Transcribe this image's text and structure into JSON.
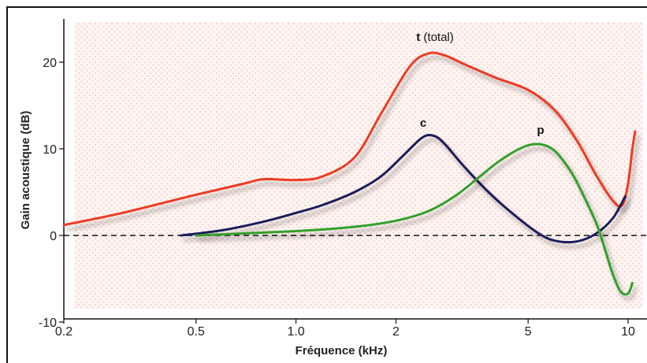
{
  "chart_data": {
    "type": "line",
    "xscale": "log",
    "xlim": [
      0.2,
      10.5
    ],
    "ylim": [
      -10,
      25
    ],
    "xticks": [
      {
        "value": 0.2,
        "label": "0.2"
      },
      {
        "value": 0.5,
        "label": "0.5"
      },
      {
        "value": 1.0,
        "label": "1.0"
      },
      {
        "value": 2,
        "label": "2"
      },
      {
        "value": 5,
        "label": "5"
      },
      {
        "value": 10,
        "label": "10"
      }
    ],
    "yticks": [
      {
        "value": -10,
        "label": "-10"
      },
      {
        "value": 0,
        "label": "0"
      },
      {
        "value": 10,
        "label": "10"
      },
      {
        "value": 20,
        "label": "20"
      }
    ],
    "xlabel": "Fréquence (kHz)",
    "ylabel": "Gain acoustique (dB)",
    "baseline": 0,
    "series": [
      {
        "name": "t (total)",
        "label_bold": "t",
        "label_rest": " (total)",
        "color": "#ee3a22",
        "x": [
          0.2,
          0.3,
          0.5,
          0.7,
          0.8,
          1.0,
          1.2,
          1.5,
          1.8,
          2.2,
          2.5,
          2.8,
          3.2,
          4.0,
          5.0,
          6.0,
          7.0,
          8.0,
          9.0,
          9.6,
          10.0,
          10.3,
          10.5
        ],
        "y": [
          1.2,
          2.6,
          4.7,
          6.0,
          6.5,
          6.4,
          6.8,
          9.0,
          14.0,
          19.5,
          21.0,
          20.8,
          19.8,
          18.2,
          16.8,
          14.5,
          11.0,
          7.0,
          4.0,
          3.5,
          6.0,
          10.0,
          12.0
        ]
      },
      {
        "name": "c",
        "label_bold": "c",
        "label_rest": "",
        "color": "#1a1f5c",
        "x": [
          0.45,
          0.6,
          0.8,
          1.0,
          1.2,
          1.5,
          1.8,
          2.1,
          2.4,
          2.6,
          2.8,
          3.2,
          3.8,
          4.5,
          5.3,
          6.0,
          7.0,
          8.0,
          9.0,
          9.8
        ],
        "y": [
          0.0,
          0.6,
          1.6,
          2.6,
          3.5,
          5.0,
          6.8,
          9.2,
          11.3,
          11.5,
          10.6,
          8.0,
          5.0,
          2.5,
          0.4,
          -0.6,
          -0.7,
          0.2,
          2.0,
          4.5
        ]
      },
      {
        "name": "p",
        "label_bold": "p",
        "label_rest": "",
        "color": "#33a02c",
        "x": [
          0.5,
          1.0,
          1.5,
          2.0,
          2.5,
          3.0,
          3.5,
          4.0,
          4.5,
          5.0,
          5.5,
          6.0,
          6.5,
          7.0,
          8.0,
          8.5,
          9.0,
          9.5,
          10.0,
          10.3
        ],
        "y": [
          0.0,
          0.5,
          1.0,
          1.7,
          2.8,
          4.5,
          6.5,
          8.3,
          9.6,
          10.4,
          10.5,
          9.8,
          8.2,
          6.2,
          1.5,
          -1.5,
          -4.5,
          -6.5,
          -6.7,
          -5.5
        ]
      }
    ]
  }
}
